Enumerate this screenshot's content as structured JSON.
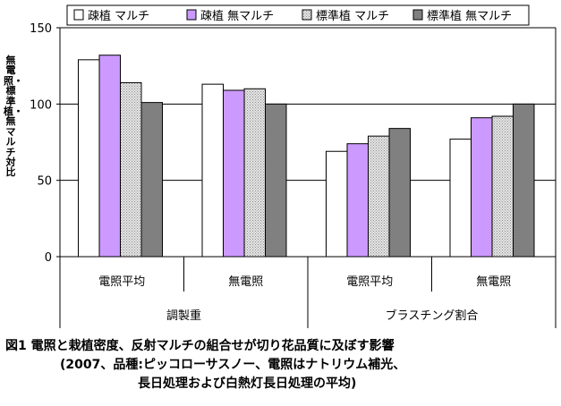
{
  "chart_data": {
    "type": "bar",
    "title": "",
    "ylabel": "無電照・標準植・無マルチ対比",
    "ylim": [
      0,
      150
    ],
    "yticks": [
      0,
      50,
      100,
      150
    ],
    "categories": [
      "電照平均",
      "無電照",
      "電照平均",
      "無電照"
    ],
    "groups": [
      {
        "label": "調製重",
        "span": [
          0,
          1
        ]
      },
      {
        "label": "ブラスチング割合",
        "span": [
          2,
          3
        ]
      }
    ],
    "series": [
      {
        "name": "疎植 マルチ",
        "color": "#ffffff",
        "pattern": "solid",
        "values": [
          129,
          113,
          69,
          77
        ]
      },
      {
        "name": "疎植 無マルチ",
        "color": "#cc99ff",
        "pattern": "solid",
        "values": [
          132,
          109,
          74,
          91
        ]
      },
      {
        "name": "標準植 マルチ",
        "color": "#d4d4d4",
        "pattern": "dots",
        "values": [
          114,
          110,
          79,
          92
        ]
      },
      {
        "name": "標準植 無マルチ",
        "color": "#808080",
        "pattern": "solid",
        "values": [
          101,
          100,
          84,
          100
        ]
      }
    ]
  },
  "caption": {
    "line1": "図1  電照と栽植密度、反射マルチの組合せが切り花品質に及ぼす影響",
    "line2": "(2007、品種:ピッコローサスノー、電照はナトリウム補光、",
    "line3": "長日処理および白熱灯長日処理の平均)"
  }
}
